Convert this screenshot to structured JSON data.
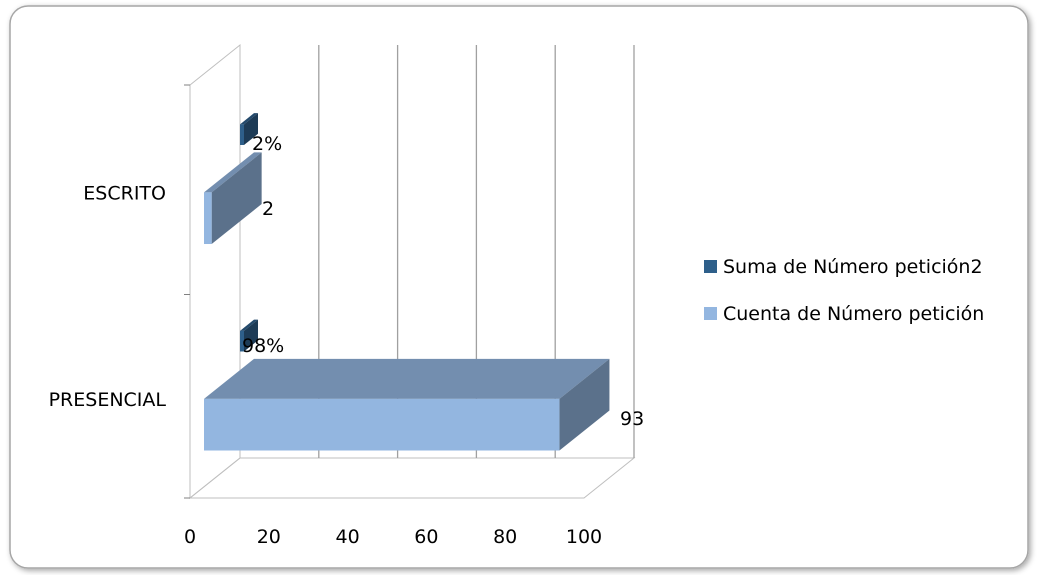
{
  "chart_data": {
    "type": "bar",
    "orientation": "horizontal",
    "style": "3d-clustered",
    "categories": [
      "ESCRITO",
      "PRESENCIAL"
    ],
    "series": [
      {
        "name": "Suma de Número petición2",
        "color": "#2e5f8a",
        "values": [
          0.0215,
          0.9785
        ],
        "data_labels": [
          "2%",
          "98%"
        ]
      },
      {
        "name": "Cuenta de Número petición",
        "color": "#93b6e0",
        "values": [
          2,
          93
        ],
        "data_labels": [
          "2",
          "93"
        ]
      }
    ],
    "x_ticks": [
      "0",
      "20",
      "40",
      "60",
      "80",
      "100"
    ],
    "xlim": [
      0,
      100
    ],
    "grid": "vertical",
    "legend": "right"
  }
}
